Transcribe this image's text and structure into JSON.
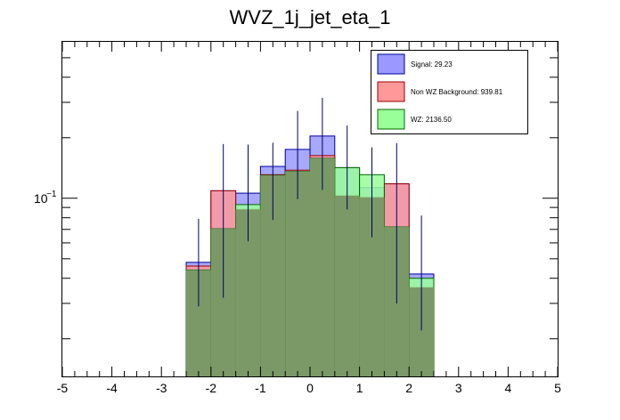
{
  "chart_data": {
    "type": "histogram",
    "title": "WVZ_1j_jet_eta_1",
    "xlabel": "",
    "ylabel": "",
    "xlim": [
      -5,
      5
    ],
    "ylog": true,
    "ylim": [
      0.013,
      0.6
    ],
    "x_ticks": [
      "-5",
      "-4",
      "-3",
      "-2",
      "-1",
      "0",
      "1",
      "2",
      "3",
      "4",
      "5"
    ],
    "x_tick_values": [
      -5,
      -4,
      -3,
      -2,
      -1,
      0,
      1,
      2,
      3,
      4,
      5
    ],
    "y_tick_mantissa": "10",
    "y_tick_exponent": "−1",
    "y_tick_value": 0.1,
    "bin_edges": [
      -2.5,
      -2.0,
      -1.5,
      -1.0,
      -0.5,
      0.0,
      0.5,
      1.0,
      1.5,
      2.0,
      2.5
    ],
    "series": [
      {
        "name": "WZ",
        "legend": "WZ: 2136.50",
        "fill": "#99ff99",
        "line": "#006600",
        "values": [
          0.044,
          0.0705,
          0.093,
          0.13,
          0.136,
          0.158,
          0.142,
          0.131,
          0.072,
          0.04
        ]
      },
      {
        "name": "Non WZ Background",
        "legend": "Non WZ Background: 939.81",
        "fill": "#ff9999",
        "line": "#990000",
        "values": [
          0.046,
          0.109,
          0.088,
          0.131,
          0.138,
          0.163,
          0.103,
          0.101,
          0.118,
          0.036
        ]
      },
      {
        "name": "Signal",
        "legend": "Signal: 29.23",
        "fill": "#9999ff",
        "line": "#000099",
        "values": [
          0.048,
          0.109,
          0.106,
          0.144,
          0.175,
          0.204,
          0.142,
          0.113,
          0.118,
          0.042
        ]
      }
    ],
    "error_bars": {
      "x": [
        -2.25,
        -1.75,
        -1.25,
        -0.75,
        -0.25,
        0.25,
        0.75,
        1.25,
        1.75,
        2.25
      ],
      "low": [
        0.029,
        0.032,
        0.061,
        0.078,
        0.099,
        0.11,
        0.088,
        0.064,
        0.03,
        0.022
      ],
      "high": [
        0.079,
        0.186,
        0.185,
        0.189,
        0.272,
        0.316,
        0.23,
        0.179,
        0.188,
        0.082
      ]
    },
    "legend_position": "top-right"
  },
  "colors": {
    "frame": "#000000",
    "error_bar": "#000066",
    "overlap_fill": "#7a9966"
  }
}
